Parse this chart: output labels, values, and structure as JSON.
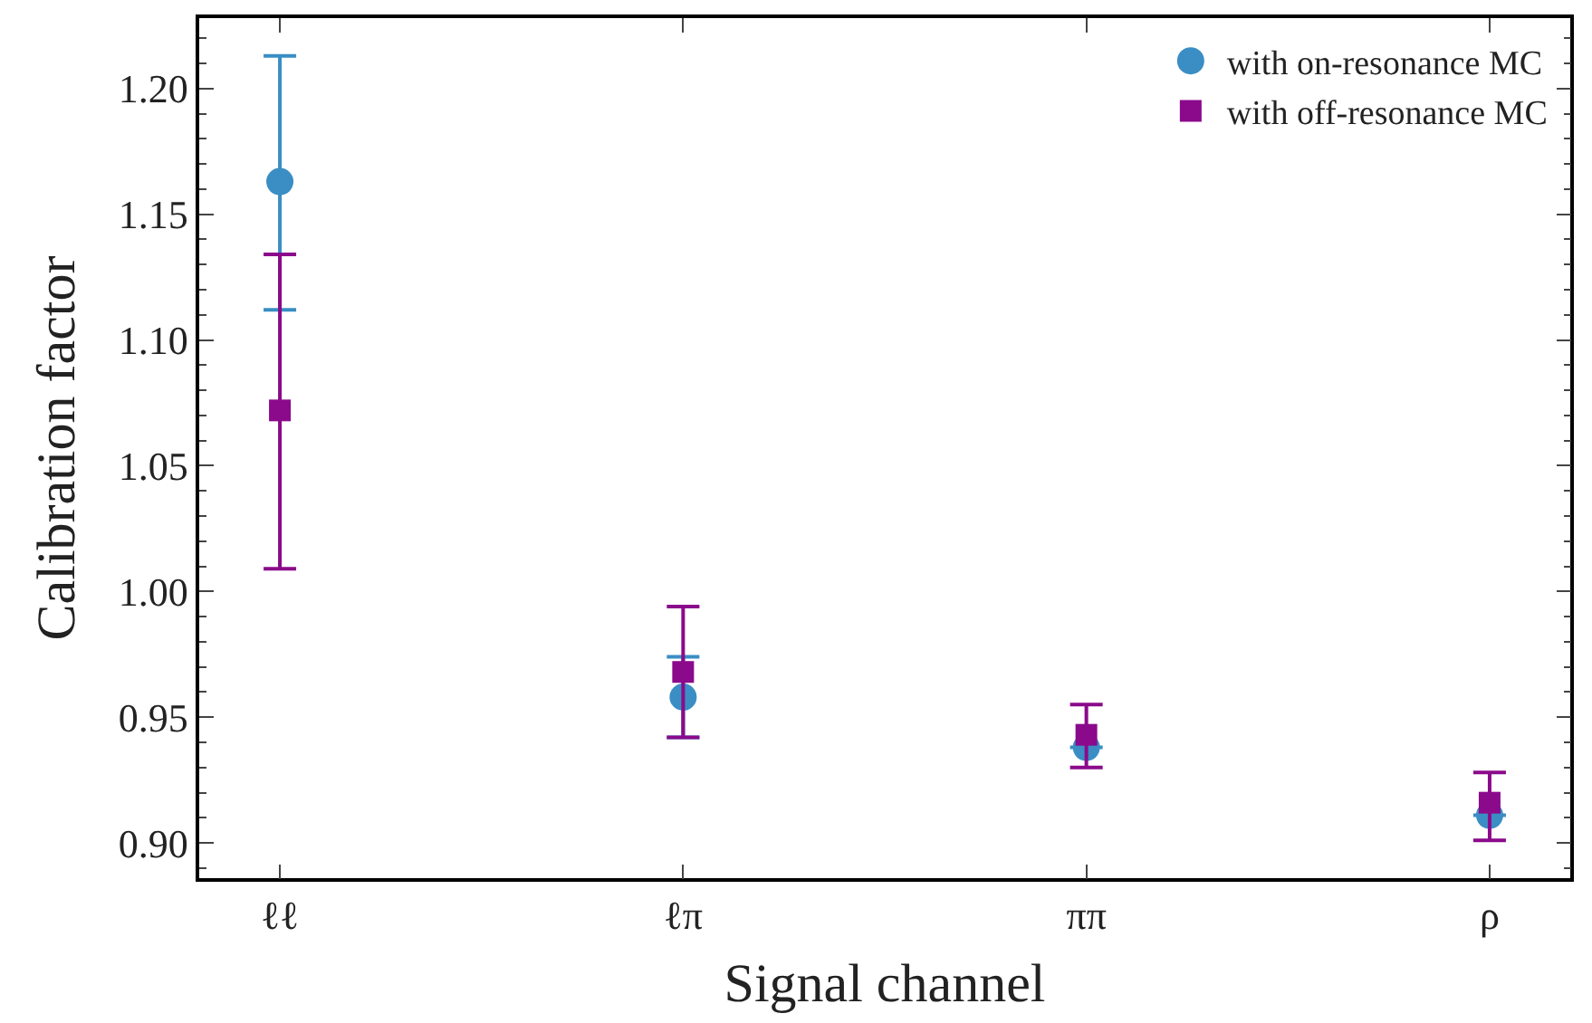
{
  "chart_data": {
    "type": "scatter",
    "xlabel": "Signal channel",
    "ylabel": "Calibration factor",
    "categories": [
      "ℓℓ",
      "ℓπ",
      "ππ",
      "ρ"
    ],
    "ylim": [
      0.886,
      1.228
    ],
    "yticks": [
      {
        "value": 0.9,
        "label": "0.90"
      },
      {
        "value": 0.95,
        "label": "0.95"
      },
      {
        "value": 1.0,
        "label": "1.00"
      },
      {
        "value": 1.05,
        "label": "1.05"
      },
      {
        "value": 1.1,
        "label": "1.10"
      },
      {
        "value": 1.15,
        "label": "1.15"
      },
      {
        "value": 1.2,
        "label": "1.20"
      }
    ],
    "legend": "top right",
    "series": [
      {
        "name": "with on-resonance MC",
        "color": "#3a8ec4",
        "marker": "circle",
        "values": [
          1.163,
          0.958,
          0.938,
          0.911
        ],
        "errors": [
          [
            1.112,
            1.213
          ],
          [
            0.942,
            0.974
          ],
          null,
          null
        ]
      },
      {
        "name": "with off-resonance MC",
        "color": "#8b0a8b",
        "marker": "square",
        "values": [
          1.072,
          0.968,
          0.943,
          0.916
        ],
        "errors": [
          [
            1.009,
            1.134
          ],
          [
            0.942,
            0.994
          ],
          [
            0.93,
            0.955
          ],
          [
            0.901,
            0.928
          ]
        ]
      }
    ]
  }
}
